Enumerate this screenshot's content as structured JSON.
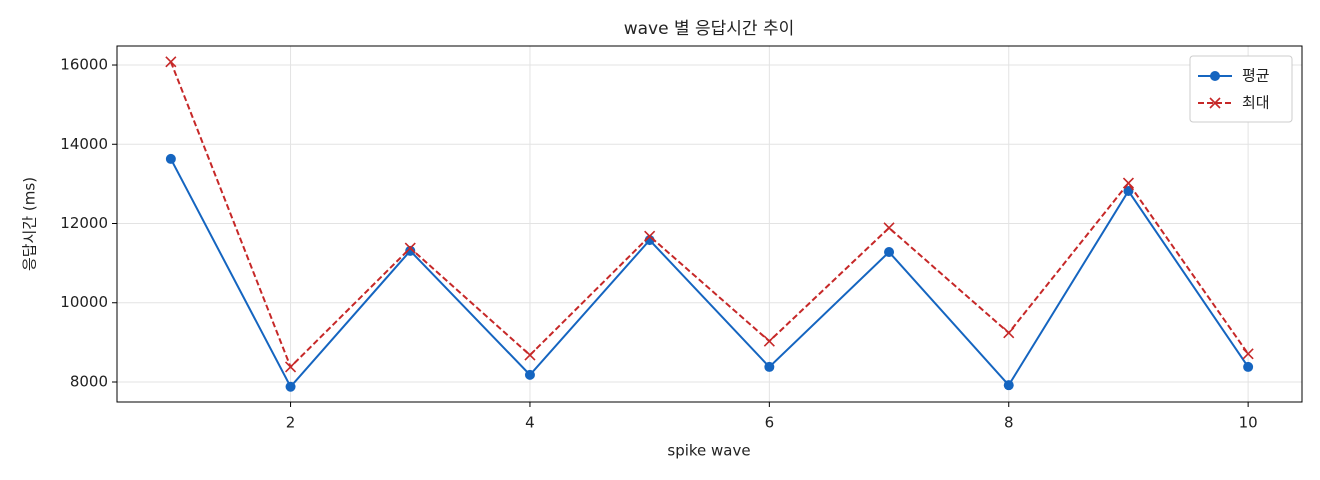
{
  "chart_data": {
    "type": "line",
    "title": "wave 별 응답시간 추이",
    "xlabel": "spike wave",
    "ylabel": "응답시간 (ms)",
    "x": [
      1,
      2,
      3,
      4,
      5,
      6,
      7,
      8,
      9,
      10
    ],
    "series": [
      {
        "name": "평균",
        "color": "#1565c0",
        "marker": "o",
        "dash": false,
        "values": [
          13630,
          7880,
          11310,
          8180,
          11580,
          8380,
          11280,
          7920,
          12820,
          8380
        ]
      },
      {
        "name": "최대",
        "color": "#c62828",
        "marker": "x",
        "dash": true,
        "values": [
          16080,
          8380,
          11380,
          8680,
          11680,
          9030,
          11890,
          9240,
          13020,
          8710
        ]
      }
    ],
    "xlim": [
      0.55,
      10.45
    ],
    "xticks": [
      2,
      4,
      6,
      8,
      10
    ],
    "ylim": [
      7495,
      16480
    ],
    "yticks": [
      8000,
      10000,
      12000,
      14000,
      16000
    ],
    "grid": true,
    "legend": "upper right"
  }
}
